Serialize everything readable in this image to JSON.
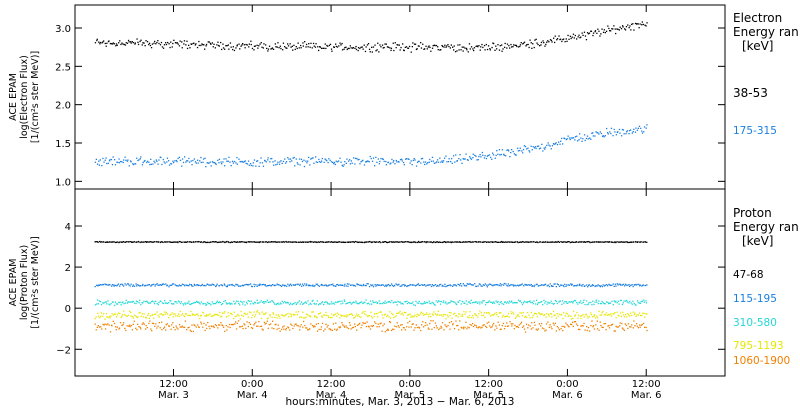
{
  "chart_data": [
    {
      "type": "scatter",
      "ylabel_lines": [
        "ACE EPAM",
        "log(Electron Flux)",
        "[1/(cm²s ster MeV)]"
      ],
      "legend_title": [
        "Electron",
        "Energy ran",
        "[keV]"
      ],
      "ylim": [
        0.9,
        3.3
      ],
      "y_ticks": [
        {
          "value": 1.0,
          "label": "1.0"
        },
        {
          "value": 1.5,
          "label": "1.5"
        },
        {
          "value": 2.0,
          "label": "2.0"
        },
        {
          "value": 2.5,
          "label": "2.5"
        },
        {
          "value": 3.0,
          "label": "3.0"
        }
      ],
      "series": [
        {
          "name": "38-53",
          "color": "#000000",
          "x": [
            0,
            12,
            24,
            36,
            48,
            60,
            66,
            72,
            78,
            84
          ],
          "y": [
            2.82,
            2.8,
            2.77,
            2.76,
            2.76,
            2.75,
            2.8,
            2.87,
            2.97,
            3.08
          ],
          "spread": 0.05
        },
        {
          "name": "175-315",
          "color": "#1a7fe0",
          "x": [
            0,
            12,
            24,
            36,
            48,
            54,
            60,
            66,
            72,
            78,
            84
          ],
          "y": [
            1.27,
            1.27,
            1.26,
            1.27,
            1.26,
            1.28,
            1.34,
            1.42,
            1.55,
            1.64,
            1.7
          ],
          "spread": 0.05
        }
      ]
    },
    {
      "type": "scatter",
      "ylabel_lines": [
        "ACE EPAM",
        "log(Proton Flux)",
        "[1/(cm²s ster MeV)]"
      ],
      "legend_title": [
        "Proton",
        "Energy ran",
        "[keV]"
      ],
      "ylim": [
        -3.3,
        5.8
      ],
      "y_ticks": [
        {
          "value": -2,
          "label": "−2"
        },
        {
          "value": 0,
          "label": "0"
        },
        {
          "value": 2,
          "label": "2"
        },
        {
          "value": 4,
          "label": "4"
        }
      ],
      "series": [
        {
          "name": "47-68",
          "color": "#000000",
          "x": [
            0,
            84
          ],
          "y": [
            3.25,
            3.25
          ],
          "spread": 0.02
        },
        {
          "name": "115-195",
          "color": "#1a7fe0",
          "x": [
            0,
            84
          ],
          "y": [
            1.15,
            1.15
          ],
          "spread": 0.06
        },
        {
          "name": "310-580",
          "color": "#22d7d7",
          "x": [
            0,
            84
          ],
          "y": [
            0.3,
            0.3
          ],
          "spread": 0.1
        },
        {
          "name": "795-1193",
          "color": "#e6e600",
          "x": [
            0,
            84
          ],
          "y": [
            -0.3,
            -0.3
          ],
          "spread": 0.15
        },
        {
          "name": "1060-1900",
          "color": "#f08000",
          "x": [
            0,
            84
          ],
          "y": [
            -0.85,
            -0.85
          ],
          "spread": 0.22
        }
      ]
    }
  ],
  "x_axis": {
    "xlim": [
      -3,
      96
    ],
    "ticks": [
      {
        "value": 12,
        "time": "12:00",
        "date": "Mar. 3"
      },
      {
        "value": 24,
        "time": "0:00",
        "date": "Mar. 4"
      },
      {
        "value": 36,
        "time": "12:00",
        "date": "Mar. 4"
      },
      {
        "value": 48,
        "time": "0:00",
        "date": "Mar. 5"
      },
      {
        "value": 60,
        "time": "12:00",
        "date": "Mar. 5"
      },
      {
        "value": 72,
        "time": "0:00",
        "date": "Mar. 6"
      },
      {
        "value": 84,
        "time": "12:00",
        "date": "Mar. 6"
      }
    ],
    "label": "hours:minutes, Mar.  3, 2013 − Mar.  6, 2013"
  }
}
